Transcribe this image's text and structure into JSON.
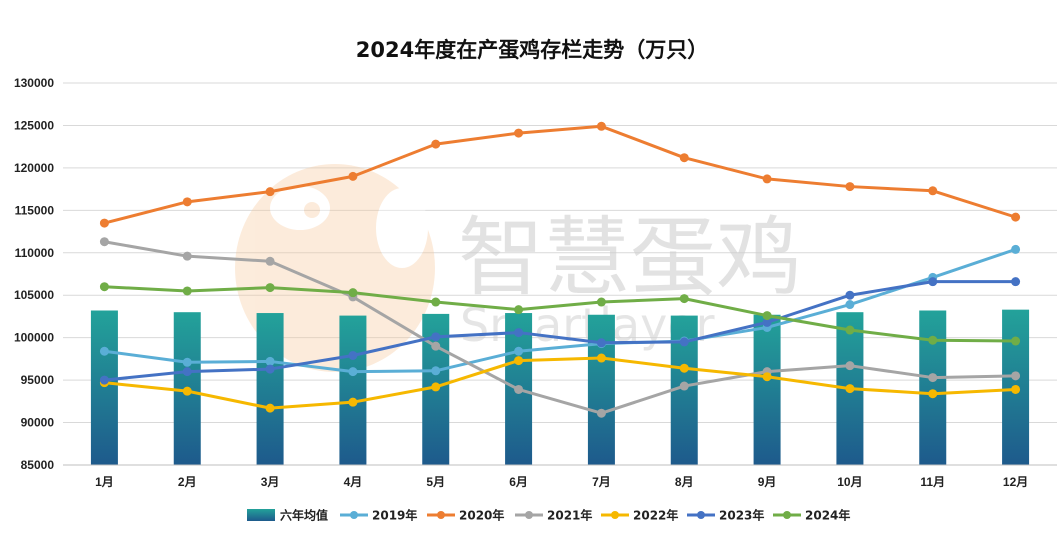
{
  "chart_data": {
    "type": "bar+line",
    "title": "2024年度在产蛋鸡存栏走势（万只）",
    "categories": [
      "1月",
      "2月",
      "3月",
      "4月",
      "5月",
      "6月",
      "7月",
      "8月",
      "9月",
      "10月",
      "11月",
      "12月"
    ],
    "ylim": [
      85000,
      130000
    ],
    "yticks": [
      85000,
      90000,
      95000,
      100000,
      105000,
      110000,
      115000,
      120000,
      125000,
      130000
    ],
    "grid": true,
    "legend_position": "bottom",
    "series": [
      {
        "name": "六年均值",
        "type": "bar",
        "color": "#1f8a8e",
        "values": [
          103200,
          103000,
          102900,
          102600,
          102800,
          102900,
          102700,
          102600,
          102700,
          103000,
          103200,
          103300
        ]
      },
      {
        "name": "2019年",
        "type": "line",
        "color": "#5aaed6",
        "values": [
          98400,
          97100,
          97200,
          96000,
          96100,
          98400,
          99300,
          99600,
          101200,
          103900,
          107100,
          110400
        ]
      },
      {
        "name": "2020年",
        "type": "line",
        "color": "#ed7d31",
        "values": [
          113500,
          116000,
          117200,
          119000,
          122800,
          124100,
          124900,
          121200,
          118700,
          117800,
          117300,
          114200
        ]
      },
      {
        "name": "2021年",
        "type": "line",
        "color": "#a5a5a5",
        "values": [
          111300,
          109600,
          109000,
          104800,
          99000,
          93900,
          91100,
          94300,
          96000,
          96700,
          95300,
          95500
        ]
      },
      {
        "name": "2022年",
        "type": "line",
        "color": "#f6b800",
        "values": [
          94700,
          93700,
          91700,
          92400,
          94200,
          97300,
          97600,
          96400,
          95400,
          94000,
          93400,
          93900
        ]
      },
      {
        "name": "2023年",
        "type": "line",
        "color": "#4472c4",
        "values": [
          95000,
          96000,
          96300,
          97900,
          100100,
          100600,
          99400,
          99500,
          101800,
          105000,
          106600,
          106600
        ]
      },
      {
        "name": "2024年",
        "type": "line",
        "color": "#70ad47",
        "values": [
          106000,
          105500,
          105900,
          105300,
          104200,
          103300,
          104200,
          104600,
          102600,
          100900,
          99700,
          99600
        ]
      }
    ]
  },
  "watermark": {
    "cn": "智慧蛋鸡",
    "en": "Smartlayer",
    "icon": "chicken-head-logo"
  }
}
